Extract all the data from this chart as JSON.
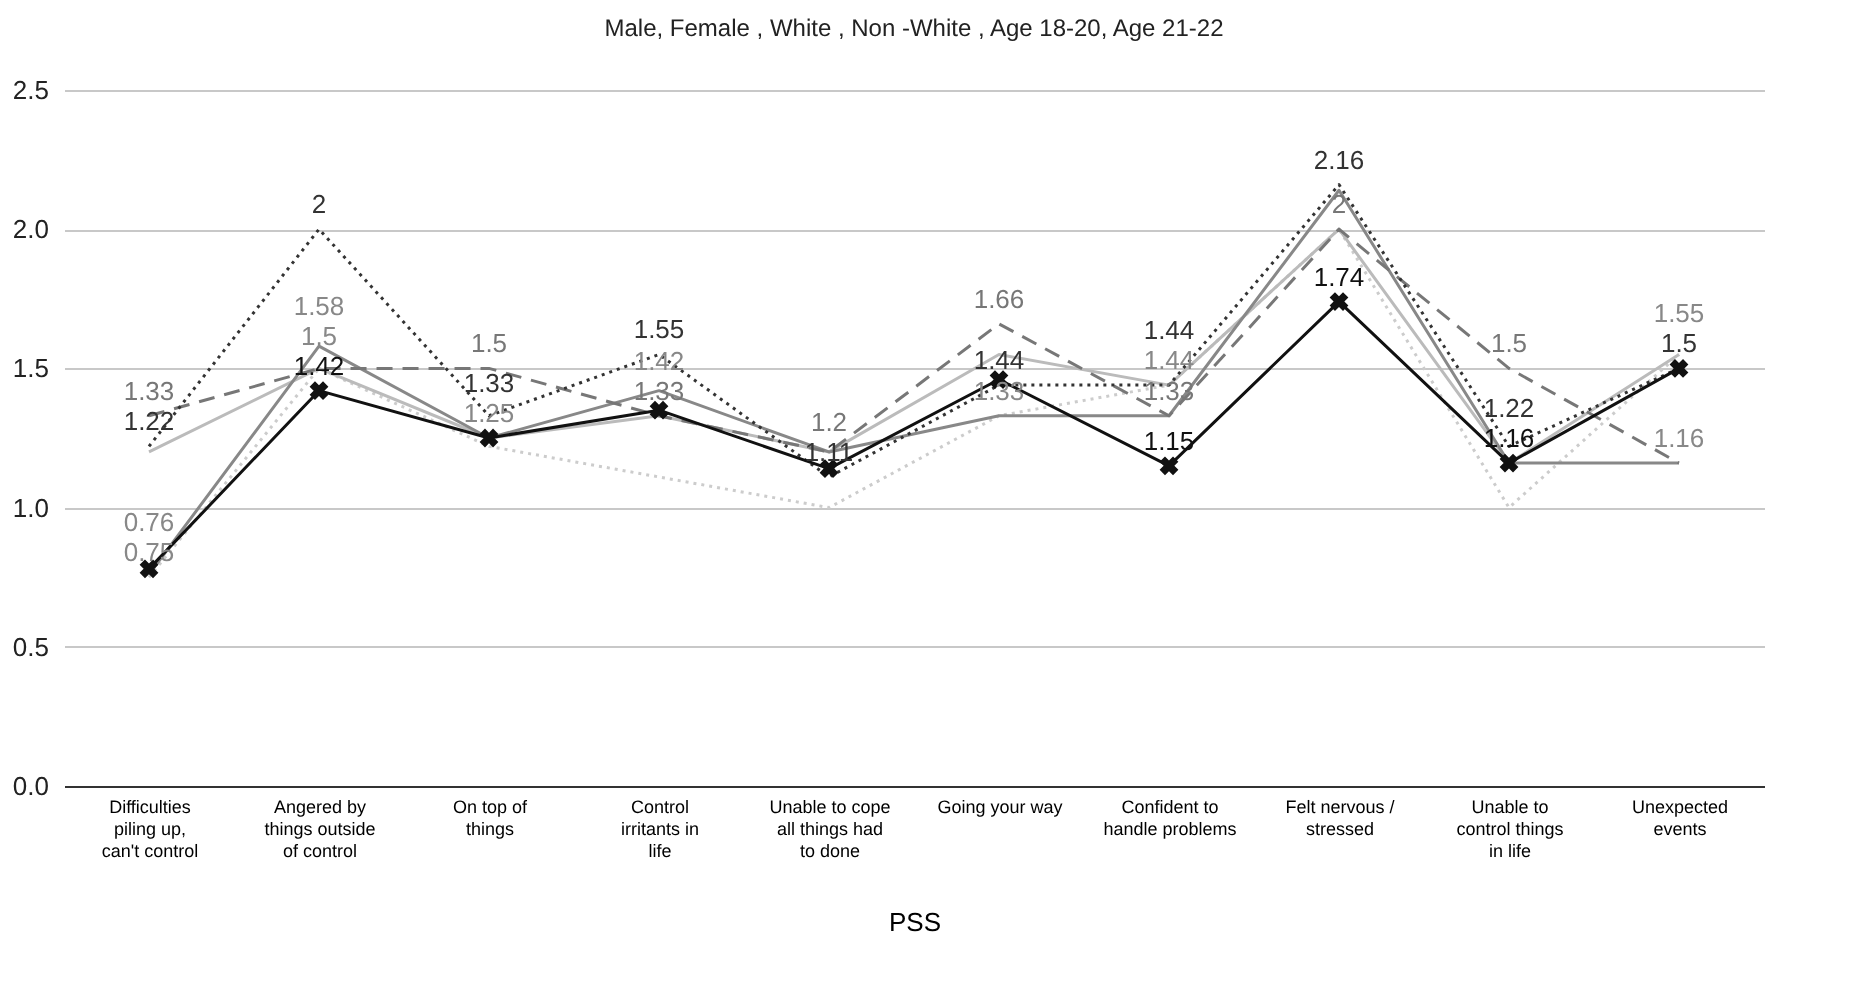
{
  "chart_data": {
    "type": "line",
    "title": "Male, Female , White , Non -White , Age 18-20, Age 21-22",
    "xlabel": "PSS",
    "categories": [
      "Difficulties piling up, can't control",
      "Angered by things outside of control",
      "On top of things",
      "Control irritants in life",
      "Unable to cope all things had to done",
      "Going your way",
      "Confident to handle problems",
      "Felt nervous / stressed",
      "Unable to control things in life",
      "Unexpected events"
    ],
    "series": [
      {
        "color": "#cccccc",
        "line_style": "dotted",
        "marker": "none",
        "values": [
          0.75,
          1.5,
          1.22,
          1.11,
          1.0,
          1.33,
          1.44,
          2.0,
          1.0,
          1.55
        ],
        "value_labels": [
          "0.75",
          null,
          null,
          null,
          null,
          null,
          null,
          null,
          null,
          null
        ]
      },
      {
        "color": "#bbbbbb",
        "line_style": "solid",
        "marker": "none",
        "values": [
          1.2,
          1.5,
          1.25,
          1.33,
          1.2,
          1.55,
          1.44,
          2.0,
          1.16,
          1.55
        ],
        "value_labels": [
          null,
          "1.5",
          null,
          null,
          null,
          null,
          "1.44",
          null,
          null,
          "1.55"
        ]
      },
      {
        "color": "#888888",
        "line_style": "solid",
        "marker": "none",
        "values": [
          0.76,
          1.58,
          1.25,
          1.42,
          1.2,
          1.33,
          1.33,
          2.14,
          1.16,
          1.16
        ],
        "value_labels": [
          "0.76",
          "1.58",
          "1.25",
          "1.42",
          null,
          "1.33",
          null,
          null,
          null,
          "1.16"
        ]
      },
      {
        "color": "#777777",
        "line_style": "dashed",
        "marker": "none",
        "values": [
          1.33,
          1.5,
          1.5,
          1.33,
          1.2,
          1.66,
          1.33,
          2.0,
          1.5,
          1.16
        ],
        "value_labels": [
          "1.33",
          null,
          "1.5",
          "1.33",
          "1.2",
          "1.66",
          "1.33",
          "2",
          "1.5",
          null
        ]
      },
      {
        "color": "#333333",
        "line_style": "dotted",
        "marker": "none",
        "values": [
          1.22,
          2.0,
          1.33,
          1.55,
          1.11,
          1.44,
          1.44,
          2.16,
          1.22,
          1.5
        ],
        "value_labels": [
          "1.22",
          "2",
          "1.33",
          "1.55",
          "1.11",
          "1.44",
          "1.44",
          "2.16",
          "1.22",
          "1.5"
        ]
      },
      {
        "color": "#111111",
        "line_style": "solid",
        "marker": "cross",
        "values": [
          0.78,
          1.42,
          1.25,
          1.35,
          1.14,
          1.46,
          1.15,
          1.74,
          1.16,
          1.5
        ],
        "value_labels": [
          null,
          "1.42",
          null,
          null,
          null,
          null,
          "1.15",
          "1.74",
          "1.16",
          null
        ]
      }
    ],
    "ylim": [
      0,
      2.5
    ],
    "yticks": [
      {
        "value": 0,
        "label": "0.0"
      },
      {
        "value": 0.5,
        "label": "0.5"
      },
      {
        "value": 1,
        "label": "1.0"
      },
      {
        "value": 1.5,
        "label": "1.5"
      },
      {
        "value": 2,
        "label": "2.0"
      },
      {
        "value": 2.5,
        "label": "2.5"
      }
    ],
    "grid": "y"
  }
}
